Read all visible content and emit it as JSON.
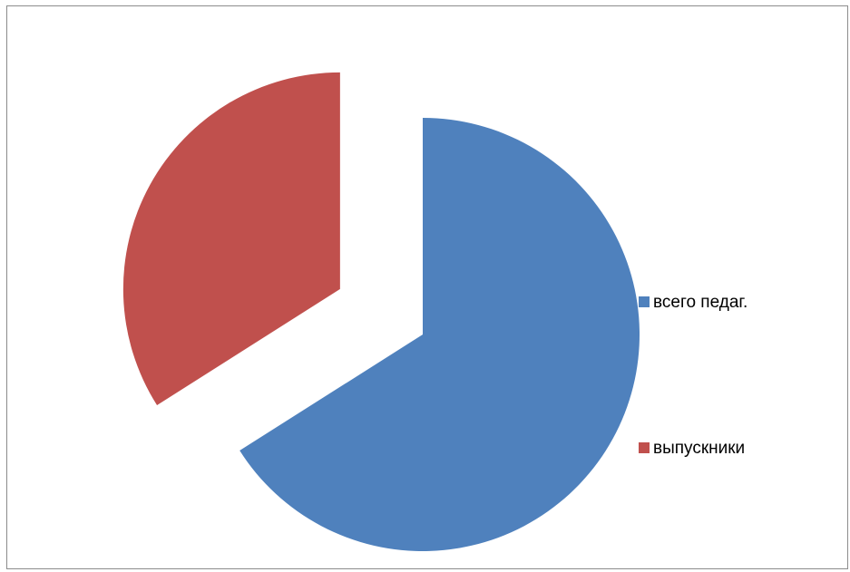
{
  "chart_data": {
    "type": "pie",
    "exploded": true,
    "categories": [
      "всего педаг.",
      "выпускники"
    ],
    "values": [
      66,
      34
    ],
    "colors": [
      "#4f81bd",
      "#c0504d"
    ],
    "legend_position": "right",
    "title": ""
  }
}
